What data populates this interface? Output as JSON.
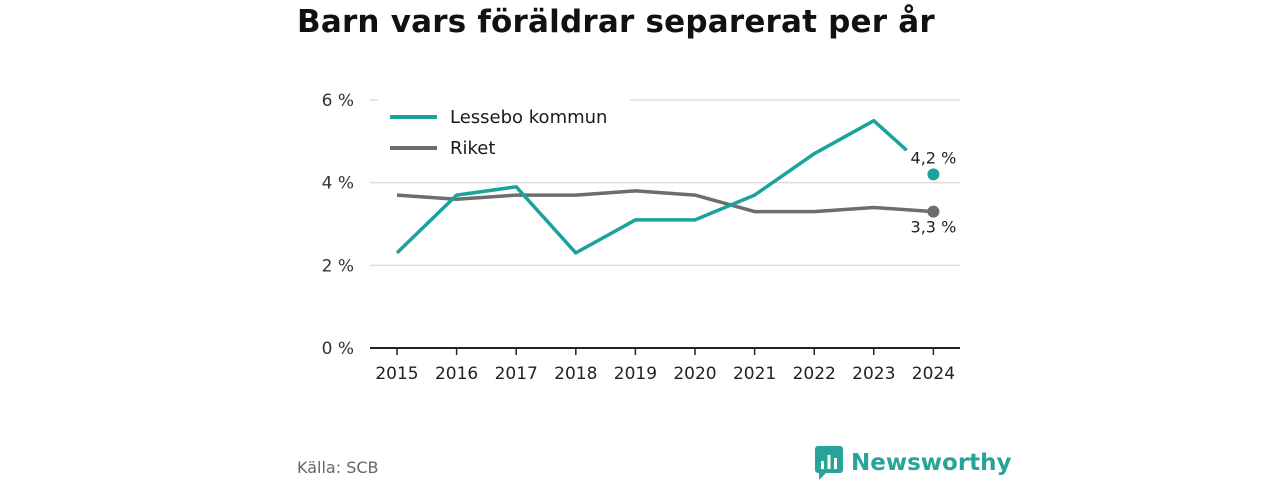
{
  "title": "Barn vars föräldrar separerat per år",
  "source": "Källa: SCB",
  "brand": {
    "name": "Newsworthy",
    "icon": "newsworthy-logo-icon",
    "color": "#27a39a"
  },
  "chart_data": {
    "type": "line",
    "x": [
      "2015",
      "2016",
      "2017",
      "2018",
      "2019",
      "2020",
      "2021",
      "2022",
      "2023",
      "2024"
    ],
    "yticks": [
      "0 %",
      "2 %",
      "4 %",
      "6 %"
    ],
    "ylim": [
      0,
      6
    ],
    "grid": true,
    "legend_position": "top-left",
    "series": [
      {
        "name": "Lessebo kommun",
        "color": "#1aa39a",
        "values": [
          2.3,
          3.7,
          3.9,
          2.3,
          3.1,
          3.1,
          3.7,
          4.7,
          5.5,
          4.2
        ],
        "end_label": "4,2 %"
      },
      {
        "name": "Riket",
        "color": "#6d6d6d",
        "values": [
          3.7,
          3.6,
          3.7,
          3.7,
          3.8,
          3.7,
          3.3,
          3.3,
          3.4,
          3.3
        ],
        "end_label": "3,3 %"
      }
    ]
  }
}
